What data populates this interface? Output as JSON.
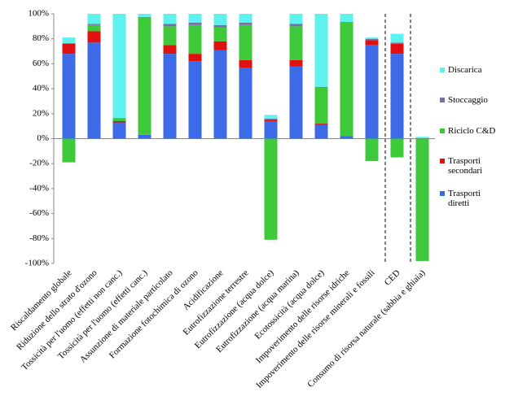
{
  "chart_data": {
    "type": "stacked-bar",
    "categories": [
      "Riscaldamento globale",
      "Riduzione dello strato d'ozono",
      "Tossicità per l'uomo (effetti non canc.)",
      "Tossicità per l'uomo (effetti canc.)",
      "Assunzione di materiale particolato",
      "Formazione fotochimica di ozono",
      "Acidificazione",
      "Eutrofizzazione terrestre",
      "Eutrofizzazione (acqua dolce)",
      "Eutrofizzazione (acqua marina)",
      "Ecotossicità (acqua dolce)",
      "Impoverimento delle risorse idriche",
      "Impoverimento delle risorse minerali e fossili",
      "CED",
      "Consumo di risorsa naturale (sabbia e ghiaia)"
    ],
    "series": [
      {
        "name": "Trasporti diretti",
        "color": "#3d6ae6",
        "values": [
          68,
          77,
          13,
          3,
          68,
          62,
          71,
          57,
          14,
          58,
          11,
          2,
          75,
          68,
          0
        ]
      },
      {
        "name": "Trasporti secondari",
        "color": "#e01010",
        "values": [
          8,
          9,
          1,
          0,
          7,
          6,
          7,
          6,
          1,
          5,
          1,
          0,
          4,
          8,
          0
        ]
      },
      {
        "name": "Riciclo C&D",
        "color": "#3ec93a",
        "values": [
          -19,
          5,
          2,
          94,
          15,
          23,
          11,
          28,
          -81,
          27,
          29,
          91,
          -18,
          -15,
          -98
        ]
      },
      {
        "name": "Stoccaggio",
        "color": "#7570a8",
        "values": [
          0.5,
          1,
          0.5,
          0.5,
          2,
          2,
          2,
          2,
          1,
          2,
          0.5,
          0.5,
          1,
          1,
          0.5
        ]
      },
      {
        "name": "Discarica",
        "color": "#5ef2ee",
        "values": [
          4.5,
          8,
          83.5,
          2.5,
          8,
          7,
          9,
          7,
          3,
          8,
          58.5,
          6.5,
          1,
          7,
          1
        ]
      }
    ],
    "ylim": [
      -100,
      100
    ],
    "yticks": [
      {
        "value": -100,
        "label": "-100%"
      },
      {
        "value": -80,
        "label": "-80%"
      },
      {
        "value": -60,
        "label": "-60%"
      },
      {
        "value": -40,
        "label": "-40%"
      },
      {
        "value": -20,
        "label": "-20%"
      },
      {
        "value": 0,
        "label": "0%"
      },
      {
        "value": 20,
        "label": "20%"
      },
      {
        "value": 40,
        "label": "40%"
      },
      {
        "value": 60,
        "label": "60%"
      },
      {
        "value": 80,
        "label": "80%"
      },
      {
        "value": 100,
        "label": "100%"
      }
    ],
    "legend": "right"
  }
}
